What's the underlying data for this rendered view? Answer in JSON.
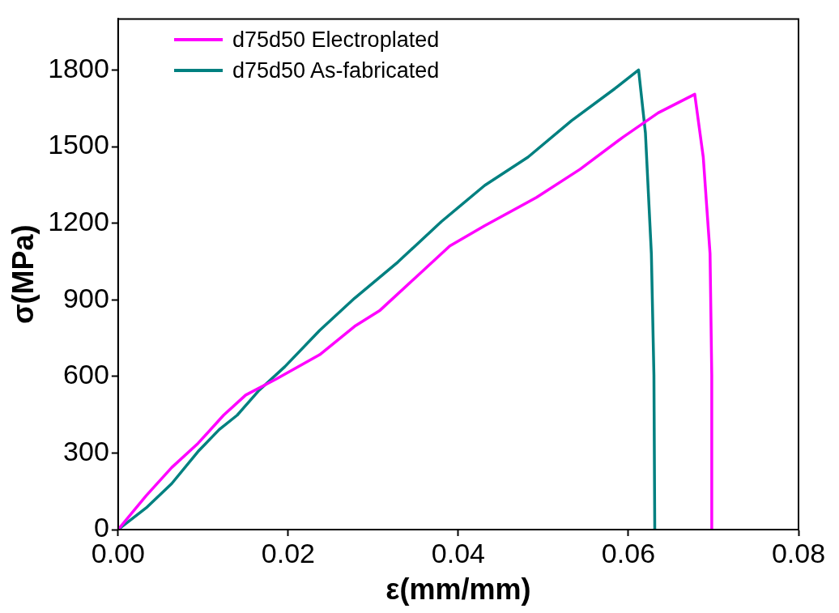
{
  "chart_data": {
    "type": "line",
    "xlabel": "ε(mm/mm)",
    "ylabel": "σ(MPa)",
    "xlim": [
      0,
      0.08
    ],
    "ylim": [
      0,
      2000
    ],
    "xticks": [
      {
        "value": 0,
        "label": "0.00"
      },
      {
        "value": 0.02,
        "label": "0.02"
      },
      {
        "value": 0.04,
        "label": "0.04"
      },
      {
        "value": 0.06,
        "label": "0.06"
      },
      {
        "value": 0.08,
        "label": "0.08"
      }
    ],
    "yticks": [
      0,
      300,
      600,
      900,
      1200,
      1500,
      1800
    ],
    "grid": false,
    "legend": "top left",
    "marker": "none",
    "line_style": "solid",
    "series": [
      {
        "name": "d75d50 Electroplated",
        "color": "#ff00ff",
        "x": [
          0,
          0.0033,
          0.0063,
          0.0094,
          0.0124,
          0.015,
          0.0186,
          0.0237,
          0.0278,
          0.0308,
          0.0349,
          0.039,
          0.0431,
          0.0492,
          0.0543,
          0.0594,
          0.0635,
          0.0678,
          0.0688,
          0.0696,
          0.0698,
          0.0698
        ],
        "values": [
          0,
          133,
          243,
          338,
          448,
          527,
          590,
          685,
          796,
          859,
          985,
          1111,
          1190,
          1301,
          1411,
          1538,
          1632,
          1705,
          1459,
          1080,
          606,
          0
        ]
      },
      {
        "name": "d75d50 As-fabricated",
        "color": "#008080",
        "x": [
          0,
          0.0033,
          0.0063,
          0.0094,
          0.0119,
          0.014,
          0.0165,
          0.0196,
          0.0237,
          0.0278,
          0.0329,
          0.038,
          0.0431,
          0.0482,
          0.0533,
          0.0584,
          0.0612,
          0.062,
          0.0627,
          0.063,
          0.0631
        ],
        "values": [
          0,
          85,
          180,
          306,
          392,
          448,
          543,
          638,
          780,
          906,
          1048,
          1206,
          1348,
          1459,
          1601,
          1727,
          1800,
          1554,
          1080,
          606,
          0
        ]
      }
    ]
  }
}
